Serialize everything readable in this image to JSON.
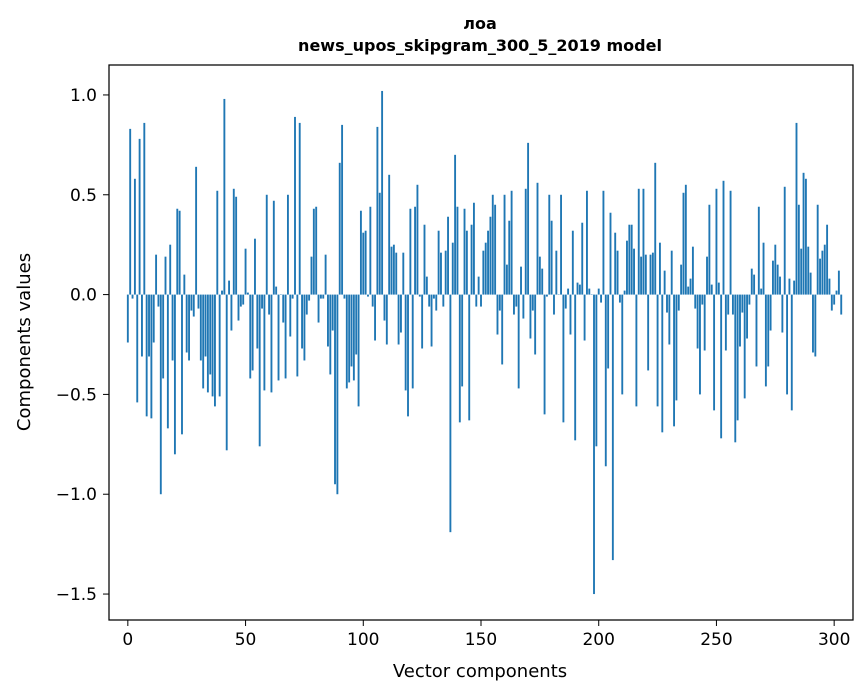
{
  "chart_data": {
    "type": "bar",
    "title_line1": "лоа",
    "title_line2": "news_upos_skipgram_300_5_2019 model",
    "xlabel": "Vector components",
    "ylabel": "Components values",
    "xlim": [
      -8,
      308
    ],
    "ylim": [
      -1.63,
      1.15
    ],
    "xticks": [
      0,
      50,
      100,
      150,
      200,
      250,
      300
    ],
    "xtick_labels": [
      "0",
      "50",
      "100",
      "150",
      "200",
      "250",
      "300"
    ],
    "yticks": [
      1.0,
      0.5,
      0.0,
      -0.5,
      -1.0,
      -1.5
    ],
    "ytick_labels": [
      "1.0",
      "0.5",
      "0.0",
      "−0.5",
      "−1.0",
      "−1.5"
    ],
    "bar_color": "#1f77b4",
    "grid": false,
    "values": [
      -0.24,
      0.83,
      -0.02,
      0.58,
      -0.54,
      0.78,
      -0.31,
      0.86,
      -0.61,
      -0.31,
      -0.62,
      -0.24,
      0.2,
      -0.06,
      -1.0,
      -0.42,
      0.19,
      -0.67,
      0.25,
      -0.33,
      -0.8,
      0.43,
      0.42,
      -0.7,
      0.1,
      -0.29,
      -0.33,
      -0.08,
      -0.11,
      0.64,
      -0.07,
      -0.33,
      -0.47,
      -0.31,
      -0.49,
      -0.4,
      -0.51,
      -0.56,
      0.52,
      -0.51,
      0.02,
      0.98,
      -0.78,
      0.07,
      -0.18,
      0.53,
      0.49,
      -0.13,
      -0.06,
      -0.05,
      0.23,
      0.01,
      -0.42,
      -0.38,
      0.28,
      -0.27,
      -0.76,
      -0.07,
      -0.48,
      0.5,
      -0.1,
      -0.49,
      0.47,
      0.04,
      -0.43,
      0.0,
      -0.14,
      -0.42,
      0.5,
      -0.21,
      -0.02,
      0.89,
      -0.41,
      0.86,
      -0.27,
      -0.33,
      -0.1,
      -0.03,
      0.19,
      0.43,
      0.44,
      -0.14,
      -0.02,
      -0.02,
      0.2,
      -0.26,
      -0.4,
      -0.18,
      -0.95,
      -1.0,
      0.66,
      0.85,
      -0.02,
      -0.47,
      -0.44,
      -0.36,
      -0.43,
      -0.3,
      -0.56,
      0.42,
      0.31,
      0.32,
      -0.01,
      0.44,
      -0.06,
      -0.23,
      0.84,
      0.51,
      1.02,
      -0.13,
      -0.25,
      0.6,
      0.24,
      0.25,
      0.21,
      -0.25,
      -0.19,
      0.21,
      -0.48,
      -0.61,
      0.43,
      -0.47,
      0.44,
      0.55,
      -0.01,
      -0.27,
      0.35,
      0.09,
      -0.06,
      -0.26,
      -0.02,
      -0.08,
      0.32,
      0.21,
      -0.06,
      0.22,
      0.39,
      -1.19,
      0.26,
      0.7,
      0.44,
      -0.64,
      -0.46,
      0.43,
      0.32,
      -0.63,
      0.35,
      0.46,
      -0.06,
      0.09,
      -0.06,
      0.22,
      0.26,
      0.32,
      0.39,
      0.5,
      0.45,
      -0.2,
      -0.08,
      -0.35,
      0.5,
      0.15,
      0.37,
      0.52,
      -0.1,
      -0.06,
      -0.47,
      0.14,
      -0.12,
      0.53,
      0.76,
      -0.22,
      -0.08,
      -0.3,
      0.56,
      0.19,
      0.13,
      -0.6,
      -0.01,
      0.5,
      0.37,
      -0.1,
      0.22,
      0.0,
      0.5,
      -0.64,
      -0.07,
      0.03,
      -0.2,
      0.32,
      -0.73,
      0.06,
      0.05,
      0.36,
      -0.23,
      0.52,
      0.03,
      0.0,
      -1.5,
      -0.76,
      0.03,
      -0.04,
      0.52,
      -0.86,
      -0.37,
      0.41,
      -1.33,
      0.31,
      0.22,
      -0.04,
      -0.5,
      0.02,
      0.27,
      0.35,
      0.35,
      0.23,
      -0.56,
      0.53,
      0.19,
      0.53,
      0.2,
      -0.38,
      0.2,
      0.21,
      0.66,
      -0.56,
      0.26,
      -0.69,
      0.12,
      -0.09,
      -0.25,
      0.22,
      -0.66,
      -0.53,
      -0.08,
      0.15,
      0.51,
      0.55,
      0.04,
      0.08,
      0.24,
      -0.07,
      -0.27,
      -0.5,
      -0.05,
      -0.28,
      0.19,
      0.45,
      0.05,
      -0.58,
      0.53,
      0.06,
      -0.72,
      0.57,
      -0.28,
      -0.1,
      0.52,
      -0.1,
      -0.74,
      -0.63,
      -0.26,
      -0.09,
      -0.52,
      -0.22,
      -0.05,
      0.13,
      0.1,
      -0.36,
      0.44,
      0.03,
      0.26,
      -0.46,
      -0.36,
      -0.18,
      0.17,
      0.25,
      0.15,
      0.09,
      -0.19,
      0.54,
      -0.5,
      0.08,
      -0.58,
      0.07,
      0.86,
      0.45,
      0.23,
      0.61,
      0.58,
      0.24,
      0.11,
      -0.29,
      -0.31,
      0.45,
      0.18,
      0.22,
      0.25,
      0.35,
      0.08,
      -0.08,
      -0.05,
      0.02,
      0.12,
      -0.1
    ]
  }
}
